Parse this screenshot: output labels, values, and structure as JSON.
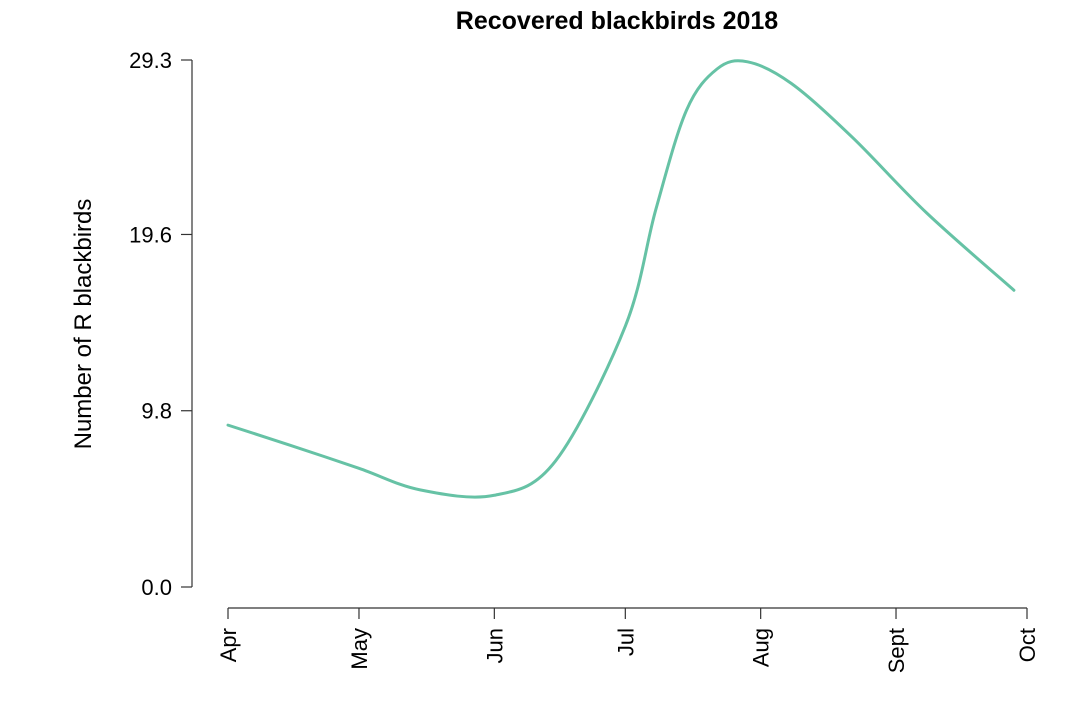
{
  "chart_data": {
    "type": "line",
    "title": "Recovered blackbirds 2018",
    "xlabel": "",
    "ylabel": "Number of R blackbirds",
    "x_ticks": [
      "Apr",
      "May",
      "Jun",
      "Jul",
      "Aug",
      "Sept",
      "Oct"
    ],
    "y_ticks": [
      "0.0",
      "9.8",
      "19.6",
      "29.3"
    ],
    "ylim": [
      0,
      29.3
    ],
    "xlim": [
      "2018-04-01",
      "2018-10-01"
    ],
    "grid": false,
    "legend": "none",
    "series": [
      {
        "color": "#66c2a5",
        "x": [
          "2018-04-01",
          "2018-04-15",
          "2018-05-01",
          "2018-05-15",
          "2018-06-01",
          "2018-06-15",
          "2018-07-01",
          "2018-07-08",
          "2018-07-15",
          "2018-07-22",
          "2018-07-29",
          "2018-08-08",
          "2018-08-22",
          "2018-09-08",
          "2018-09-28"
        ],
        "values": [
          9.0,
          7.9,
          6.6,
          5.4,
          5.1,
          7.0,
          14.5,
          21.0,
          26.5,
          28.8,
          29.2,
          28.0,
          25.0,
          20.8,
          16.5
        ]
      }
    ]
  }
}
